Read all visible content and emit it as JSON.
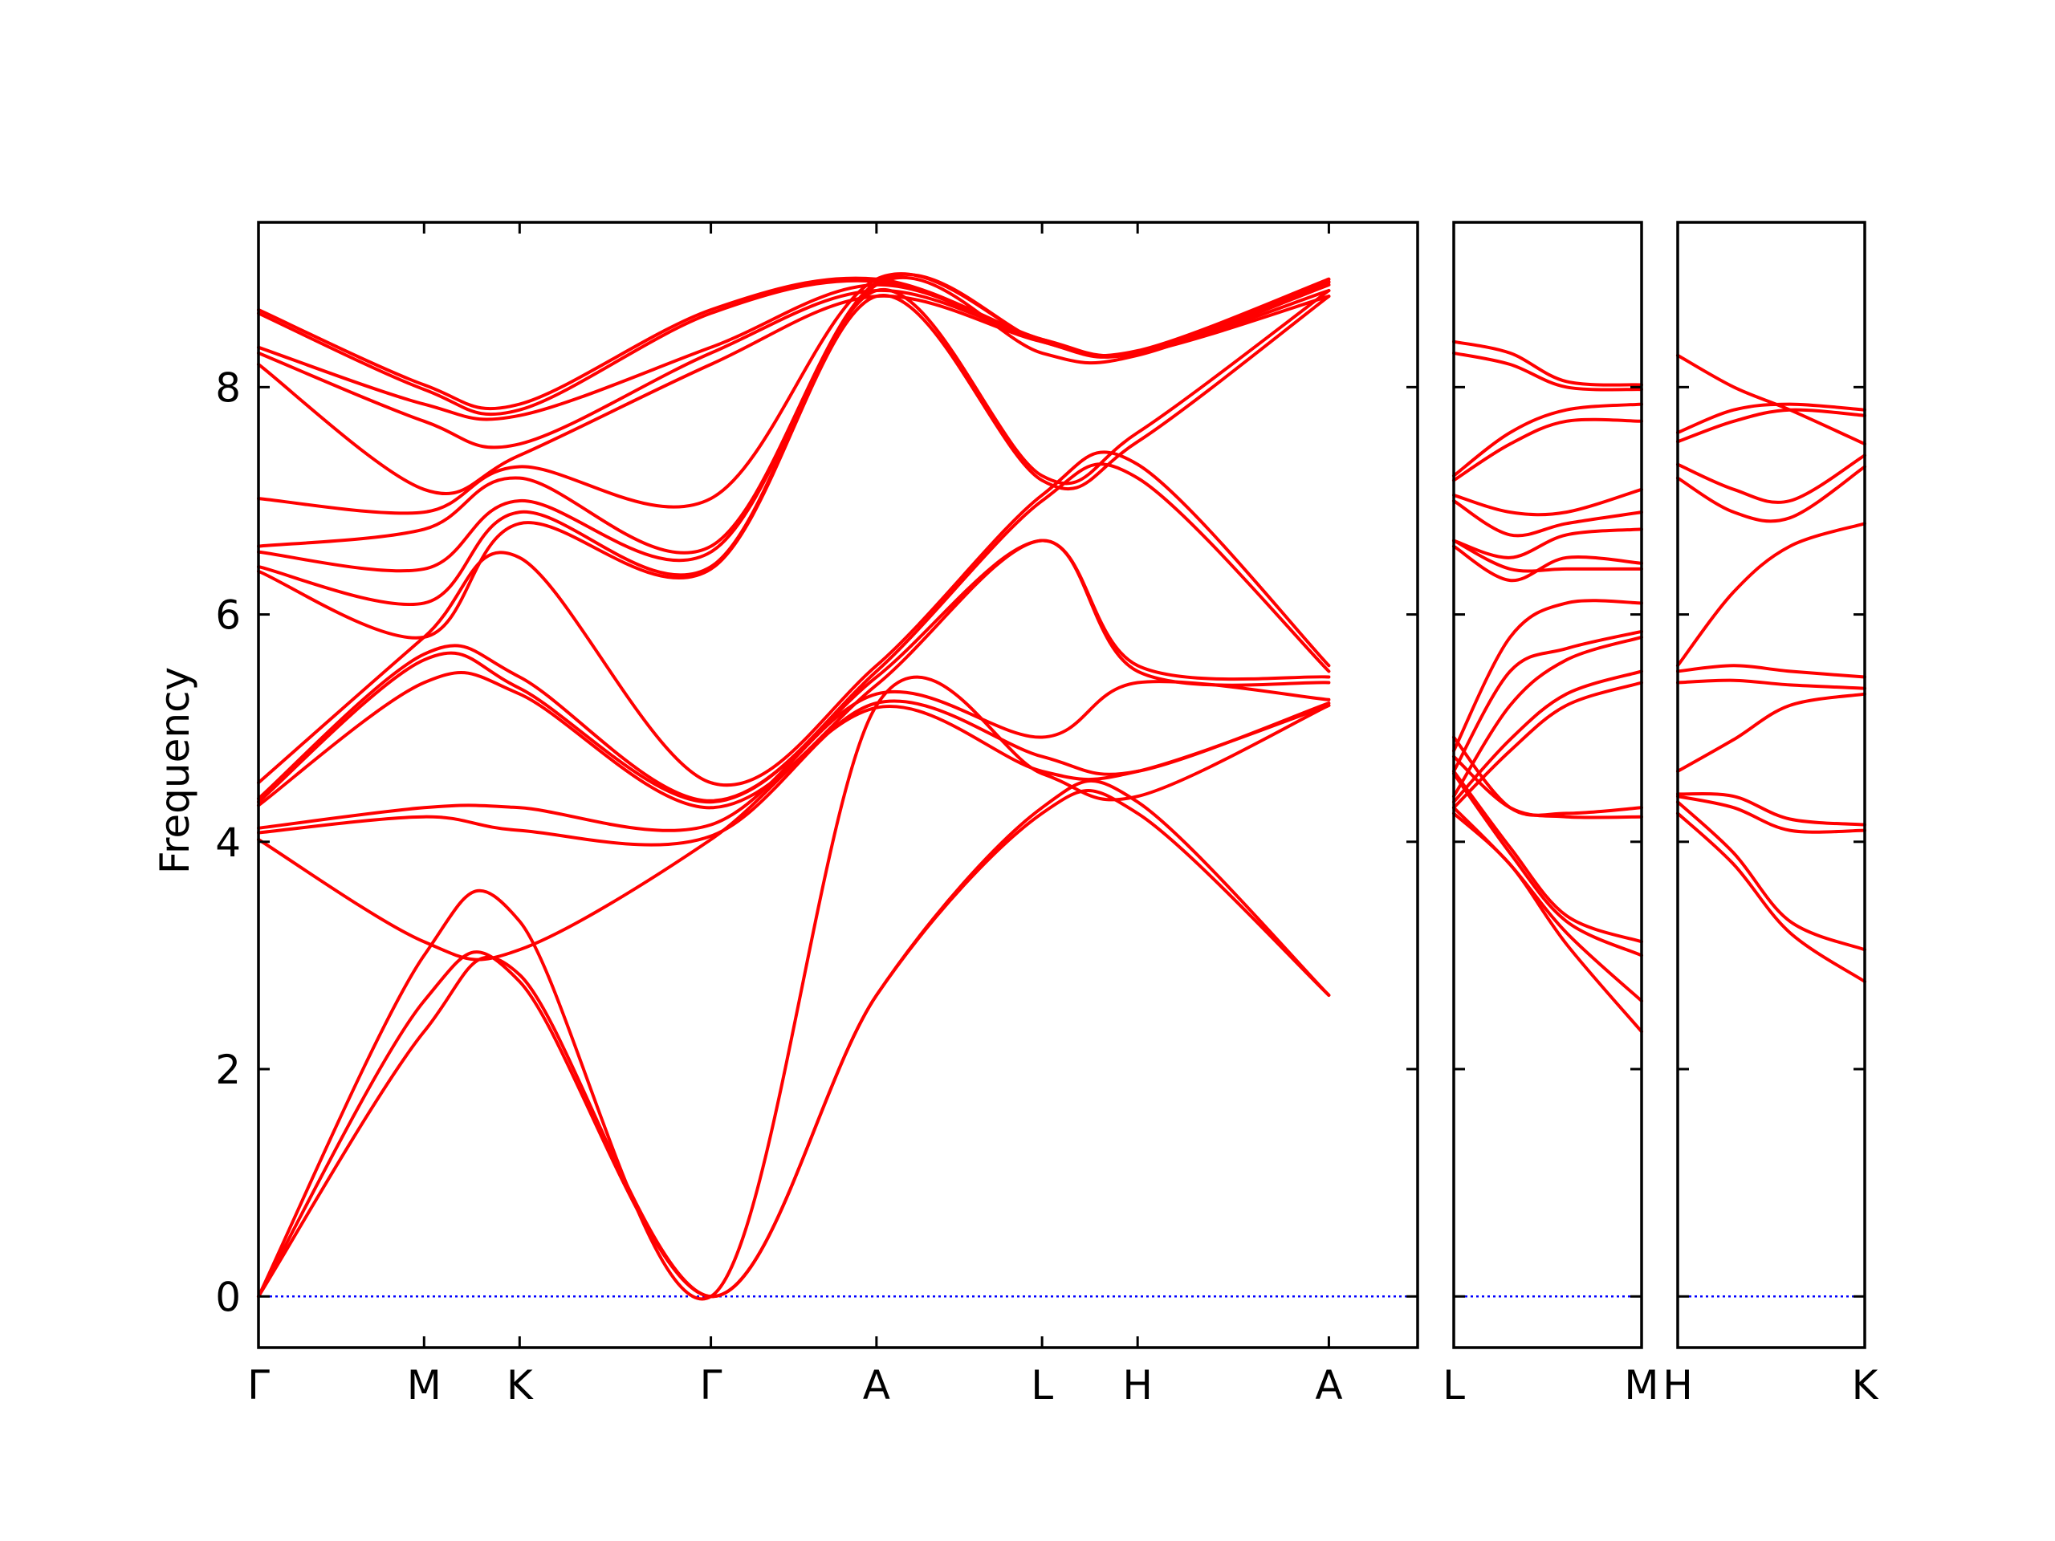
{
  "chart_data": {
    "type": "line",
    "ylabel": "Frequency",
    "ylim": [
      -0.45,
      9.45
    ],
    "yticks": [
      0,
      2,
      4,
      6,
      8
    ],
    "colors": {
      "bands": "#ff0000",
      "zero_line": "#0000ff",
      "frame": "#000000"
    },
    "panels": [
      {
        "name": "main",
        "xlim": [
          0,
          7
        ],
        "xticks": [
          {
            "x": 0,
            "label": "Γ"
          },
          {
            "x": 1,
            "label": "M"
          },
          {
            "x": 1.577,
            "label": "K"
          },
          {
            "x": 2.732,
            "label": "Γ"
          },
          {
            "x": 3.732,
            "label": "A"
          },
          {
            "x": 4.732,
            "label": "L"
          },
          {
            "x": 5.309,
            "label": "H"
          },
          {
            "x": 6.464,
            "label": "A"
          }
        ],
        "series": [
          {
            "x": [
              0,
              1,
              1.577,
              2.732,
              3.732,
              4.732,
              5.309,
              6.464
            ],
            "y": [
              0,
              2.33,
              2.83,
              0,
              2.65,
              4.25,
              4.25,
              2.65
            ]
          },
          {
            "x": [
              0,
              1,
              1.577,
              2.732,
              3.732,
              4.732,
              5.309,
              6.464
            ],
            "y": [
              0,
              2.6,
              2.77,
              0,
              2.65,
              4.3,
              4.35,
              2.65
            ]
          },
          {
            "x": [
              0,
              1,
              1.577,
              2.732,
              3.732,
              4.732,
              5.309,
              6.464
            ],
            "y": [
              0,
              3.0,
              3.3,
              0,
              5.2,
              4.6,
              4.4,
              5.2
            ]
          },
          {
            "x": [
              0,
              1,
              1.577,
              2.732,
              3.732,
              4.732,
              5.309,
              6.464
            ],
            "y": [
              4.02,
              3.12,
              3.05,
              4.02,
              5.18,
              4.62,
              4.62,
              5.2
            ]
          },
          {
            "x": [
              0,
              1,
              1.577,
              2.732,
              3.732,
              4.732,
              5.309,
              6.464
            ],
            "y": [
              4.08,
              4.22,
              4.1,
              4.05,
              5.22,
              4.75,
              4.62,
              5.22
            ]
          },
          {
            "x": [
              0,
              1,
              1.577,
              2.732,
              3.732,
              4.732,
              5.309,
              6.464
            ],
            "y": [
              4.12,
              4.3,
              4.3,
              4.15,
              5.3,
              4.92,
              5.4,
              5.25
            ]
          },
          {
            "x": [
              0,
              1,
              1.577,
              2.732,
              3.732,
              4.732,
              5.309,
              6.464
            ],
            "y": [
              4.32,
              5.4,
              5.3,
              4.3,
              5.38,
              6.65,
              5.5,
              5.4
            ]
          },
          {
            "x": [
              0,
              1,
              1.577,
              2.732,
              3.732,
              4.732,
              5.309,
              6.464
            ],
            "y": [
              4.35,
              5.6,
              5.35,
              4.35,
              5.45,
              6.65,
              5.55,
              5.45
            ]
          },
          {
            "x": [
              0,
              1,
              1.577,
              2.732,
              3.732,
              4.732,
              5.309,
              6.464
            ],
            "y": [
              4.38,
              5.65,
              5.45,
              4.36,
              5.5,
              7.0,
              7.2,
              5.5
            ]
          },
          {
            "x": [
              0,
              1,
              1.577,
              2.732,
              3.732,
              4.732,
              5.309,
              6.464
            ],
            "y": [
              4.52,
              5.8,
              6.5,
              4.52,
              5.55,
              7.05,
              7.32,
              5.55
            ]
          },
          {
            "x": [
              0,
              1,
              1.577,
              2.732,
              3.732,
              4.732,
              5.309,
              6.464
            ],
            "y": [
              6.38,
              5.8,
              6.8,
              6.4,
              8.8,
              7.18,
              7.52,
              8.8
            ]
          },
          {
            "x": [
              0,
              1,
              1.577,
              2.732,
              3.732,
              4.732,
              5.309,
              6.464
            ],
            "y": [
              6.42,
              6.1,
              6.9,
              6.42,
              8.85,
              7.22,
              7.6,
              8.85
            ]
          },
          {
            "x": [
              0,
              1,
              1.577,
              2.732,
              3.732,
              4.732,
              5.309,
              6.464
            ],
            "y": [
              6.55,
              6.4,
              7.0,
              6.55,
              8.9,
              8.3,
              8.28,
              8.9
            ]
          },
          {
            "x": [
              0,
              1,
              1.577,
              2.732,
              3.732,
              4.732,
              5.309,
              6.464
            ],
            "y": [
              6.6,
              6.75,
              7.2,
              6.6,
              8.92,
              8.4,
              8.3,
              8.92
            ]
          },
          {
            "x": [
              0,
              1,
              1.577,
              2.732,
              3.732,
              4.732,
              5.309,
              6.464
            ],
            "y": [
              7.02,
              6.9,
              7.3,
              7.02,
              8.95,
              8.4,
              8.32,
              8.95
            ]
          },
          {
            "x": [
              0,
              1,
              1.577,
              2.732,
              3.732,
              4.732,
              5.309,
              6.464
            ],
            "y": [
              8.2,
              7.1,
              7.4,
              8.2,
              8.8,
              8.4,
              8.3,
              8.8
            ]
          },
          {
            "x": [
              0,
              1,
              1.577,
              2.732,
              3.732,
              4.732,
              5.309,
              6.464
            ],
            "y": [
              8.3,
              7.7,
              7.5,
              8.3,
              8.85,
              8.42,
              8.3,
              8.85
            ]
          },
          {
            "x": [
              0,
              1,
              1.577,
              2.732,
              3.732,
              4.732,
              5.309,
              6.464
            ],
            "y": [
              8.35,
              7.85,
              7.75,
              8.35,
              8.9,
              8.42,
              8.3,
              8.9
            ]
          },
          {
            "x": [
              0,
              1,
              1.577,
              2.732,
              3.732,
              4.732,
              5.309,
              6.464
            ],
            "y": [
              8.65,
              7.98,
              7.8,
              8.65,
              8.93,
              8.42,
              8.3,
              8.93
            ]
          },
          {
            "x": [
              0,
              1,
              1.577,
              2.732,
              3.732,
              4.732,
              5.309,
              6.464
            ],
            "y": [
              8.68,
              8.02,
              7.85,
              8.68,
              8.95,
              8.42,
              8.3,
              8.95
            ]
          }
        ]
      },
      {
        "name": "L-M",
        "xlim": [
          0,
          1
        ],
        "xticks": [
          {
            "x": 0,
            "label": "L"
          },
          {
            "x": 1,
            "label": "M"
          }
        ],
        "series": [
          {
            "x": [
              0,
              0.3,
              0.6,
              1
            ],
            "y": [
              4.25,
              3.8,
              3.1,
              2.33
            ]
          },
          {
            "x": [
              0,
              0.3,
              0.6,
              1
            ],
            "y": [
              4.3,
              3.8,
              3.2,
              2.6
            ]
          },
          {
            "x": [
              0,
              0.3,
              0.6,
              1
            ],
            "y": [
              4.6,
              3.9,
              3.3,
              3.0
            ]
          },
          {
            "x": [
              0,
              0.3,
              0.6,
              1
            ],
            "y": [
              4.62,
              3.95,
              3.35,
              3.12
            ]
          },
          {
            "x": [
              0,
              0.3,
              0.6,
              1
            ],
            "y": [
              4.75,
              4.3,
              4.22,
              4.22
            ]
          },
          {
            "x": [
              0,
              0.3,
              0.6,
              1
            ],
            "y": [
              4.92,
              4.3,
              4.25,
              4.3
            ]
          },
          {
            "x": [
              0,
              0.3,
              0.6,
              1
            ],
            "y": [
              4.3,
              4.8,
              5.2,
              5.4
            ]
          },
          {
            "x": [
              0,
              0.3,
              0.6,
              1
            ],
            "y": [
              4.35,
              4.9,
              5.3,
              5.5
            ]
          },
          {
            "x": [
              0,
              0.3,
              0.6,
              1
            ],
            "y": [
              4.4,
              5.2,
              5.6,
              5.8
            ]
          },
          {
            "x": [
              0,
              0.3,
              0.6,
              1
            ],
            "y": [
              4.62,
              5.5,
              5.7,
              5.85
            ]
          },
          {
            "x": [
              0,
              0.3,
              0.6,
              1
            ],
            "y": [
              4.8,
              5.8,
              6.1,
              6.1
            ]
          },
          {
            "x": [
              0,
              0.3,
              0.6,
              1
            ],
            "y": [
              6.65,
              6.4,
              6.4,
              6.4
            ]
          },
          {
            "x": [
              0,
              0.3,
              0.6,
              1
            ],
            "y": [
              6.6,
              6.3,
              6.5,
              6.45
            ]
          },
          {
            "x": [
              0,
              0.3,
              0.6,
              1
            ],
            "y": [
              6.65,
              6.5,
              6.7,
              6.75
            ]
          },
          {
            "x": [
              0,
              0.3,
              0.6,
              1
            ],
            "y": [
              7.0,
              6.7,
              6.8,
              6.9
            ]
          },
          {
            "x": [
              0,
              0.3,
              0.6,
              1
            ],
            "y": [
              7.05,
              6.9,
              6.9,
              7.1
            ]
          },
          {
            "x": [
              0,
              0.3,
              0.6,
              1
            ],
            "y": [
              7.18,
              7.5,
              7.7,
              7.7
            ]
          },
          {
            "x": [
              0,
              0.3,
              0.6,
              1
            ],
            "y": [
              7.22,
              7.6,
              7.8,
              7.85
            ]
          },
          {
            "x": [
              0,
              0.3,
              0.6,
              1
            ],
            "y": [
              8.3,
              8.2,
              8.0,
              7.98
            ]
          },
          {
            "x": [
              0,
              0.3,
              0.6,
              1
            ],
            "y": [
              8.4,
              8.3,
              8.05,
              8.02
            ]
          }
        ]
      },
      {
        "name": "H-K",
        "xlim": [
          0,
          1
        ],
        "xticks": [
          {
            "x": 0,
            "label": "H"
          },
          {
            "x": 1,
            "label": "K"
          }
        ],
        "series": [
          {
            "x": [
              0,
              0.3,
              0.6,
              1
            ],
            "y": [
              4.25,
              3.8,
              3.2,
              2.77
            ]
          },
          {
            "x": [
              0,
              0.3,
              0.6,
              1
            ],
            "y": [
              4.35,
              3.9,
              3.3,
              3.05
            ]
          },
          {
            "x": [
              0,
              0.3,
              0.6,
              1
            ],
            "y": [
              4.4,
              4.3,
              4.1,
              4.1
            ]
          },
          {
            "x": [
              0,
              0.3,
              0.6,
              1
            ],
            "y": [
              4.42,
              4.4,
              4.2,
              4.15
            ]
          },
          {
            "x": [
              0,
              0.3,
              0.6,
              1
            ],
            "y": [
              4.62,
              4.9,
              5.2,
              5.3
            ]
          },
          {
            "x": [
              0,
              0.3,
              0.6,
              1
            ],
            "y": [
              5.4,
              5.42,
              5.38,
              5.35
            ]
          },
          {
            "x": [
              0,
              0.3,
              0.6,
              1
            ],
            "y": [
              5.5,
              5.55,
              5.5,
              5.45
            ]
          },
          {
            "x": [
              0,
              0.3,
              0.6,
              1
            ],
            "y": [
              5.55,
              6.2,
              6.6,
              6.8
            ]
          },
          {
            "x": [
              0,
              0.3,
              0.6,
              1
            ],
            "y": [
              7.2,
              6.9,
              6.85,
              7.3
            ]
          },
          {
            "x": [
              0,
              0.3,
              0.6,
              1
            ],
            "y": [
              7.32,
              7.1,
              7.0,
              7.4
            ]
          },
          {
            "x": [
              0,
              0.3,
              0.6,
              1
            ],
            "y": [
              7.52,
              7.7,
              7.8,
              7.75
            ]
          },
          {
            "x": [
              0,
              0.3,
              0.6,
              1
            ],
            "y": [
              7.6,
              7.8,
              7.85,
              7.8
            ]
          },
          {
            "x": [
              0,
              0.3,
              0.6,
              1
            ],
            "y": [
              8.28,
              8.0,
              7.8,
              7.5
            ]
          }
        ]
      }
    ]
  }
}
